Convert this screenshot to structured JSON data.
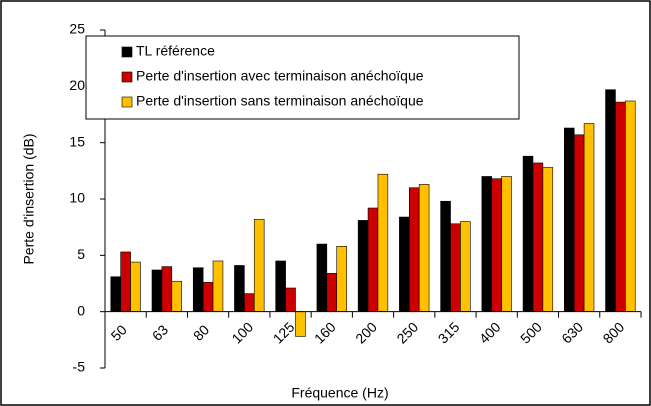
{
  "chart_data": {
    "type": "bar",
    "xlabel": "Fréquence (Hz)",
    "ylabel": "Perte d'insertion (dB)",
    "categories": [
      "50",
      "63",
      "80",
      "100",
      "125",
      "160",
      "200",
      "250",
      "315",
      "400",
      "500",
      "630",
      "800"
    ],
    "series": [
      {
        "name": "TL référence",
        "color": "#000000",
        "values": [
          3.1,
          3.7,
          3.9,
          4.1,
          4.5,
          6.0,
          8.1,
          8.4,
          9.8,
          12.0,
          13.8,
          16.3,
          19.7
        ]
      },
      {
        "name": "Perte d'insertion avec terminaison anéchoïque",
        "color": "#cc0000",
        "values": [
          5.3,
          4.0,
          2.6,
          1.6,
          2.1,
          3.4,
          9.2,
          11.0,
          7.8,
          11.8,
          13.2,
          15.7,
          18.6
        ]
      },
      {
        "name": "Perte d'insertion sans terminaison anéchoïque",
        "color": "#ffc000",
        "values": [
          4.4,
          2.7,
          4.5,
          8.2,
          -2.2,
          5.8,
          12.2,
          11.3,
          8.0,
          12.0,
          12.8,
          16.7,
          18.7
        ]
      }
    ],
    "ylim": [
      -5,
      25
    ],
    "yticks": [
      -5,
      0,
      5,
      10,
      15,
      20,
      25
    ],
    "grid": false,
    "legend": "top-left"
  }
}
